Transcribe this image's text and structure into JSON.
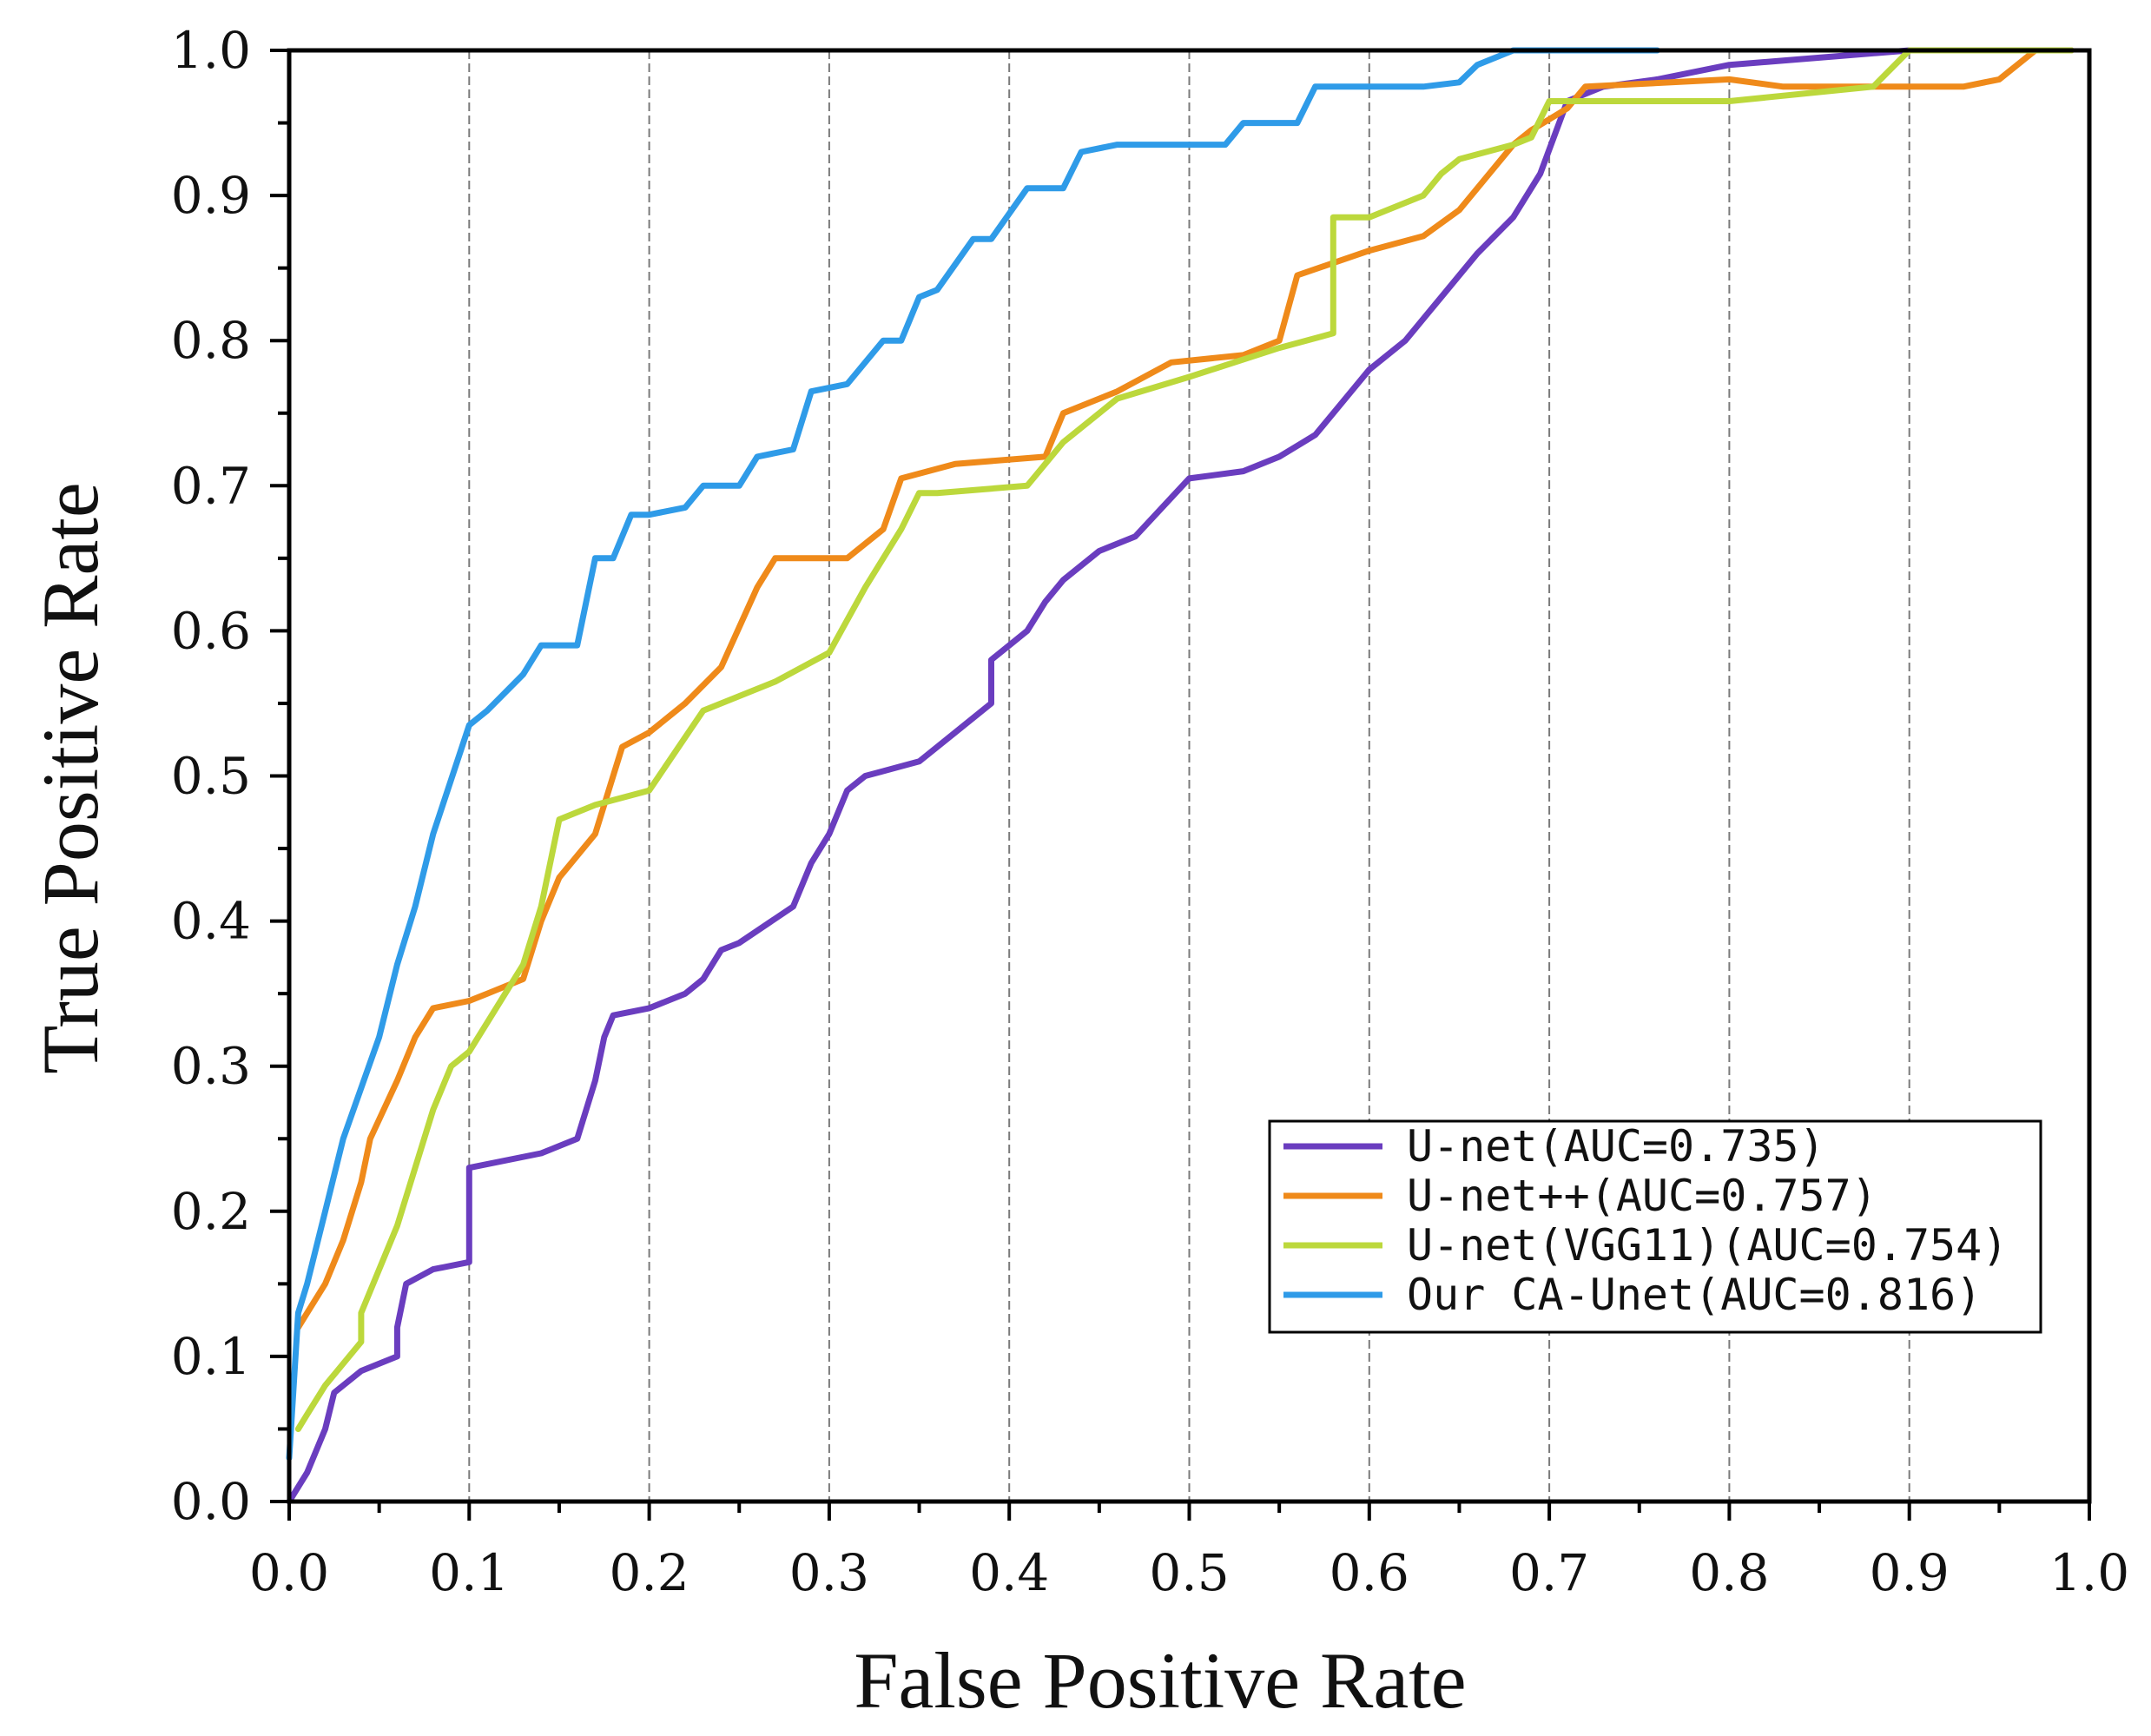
{
  "chart_data": {
    "type": "line",
    "title": "",
    "xlabel": "False Positive Rate",
    "ylabel": "True Positive Rate",
    "xlim": [
      0,
      1
    ],
    "ylim": [
      0,
      1
    ],
    "xticks": [
      "0.0",
      "0.1",
      "0.2",
      "0.3",
      "0.4",
      "0.5",
      "0.6",
      "0.7",
      "0.8",
      "0.9",
      "1.0"
    ],
    "yticks": [
      "0.0",
      "0.1",
      "0.2",
      "0.3",
      "0.4",
      "0.5",
      "0.6",
      "0.7",
      "0.8",
      "0.9",
      "1.0"
    ],
    "grid": "vertical dashed at major x ticks",
    "legend_position": "lower-right",
    "series": [
      {
        "name": "U-net(AUC=0.735)",
        "color": "#6a3dbf",
        "points": [
          [
            0,
            0
          ],
          [
            0.01,
            0.02
          ],
          [
            0.02,
            0.05
          ],
          [
            0.025,
            0.075
          ],
          [
            0.03,
            0.08
          ],
          [
            0.04,
            0.09
          ],
          [
            0.06,
            0.1
          ],
          [
            0.06,
            0.12
          ],
          [
            0.065,
            0.15
          ],
          [
            0.08,
            0.16
          ],
          [
            0.1,
            0.165
          ],
          [
            0.1,
            0.23
          ],
          [
            0.14,
            0.24
          ],
          [
            0.16,
            0.25
          ],
          [
            0.17,
            0.29
          ],
          [
            0.175,
            0.32
          ],
          [
            0.18,
            0.335
          ],
          [
            0.2,
            0.34
          ],
          [
            0.22,
            0.35
          ],
          [
            0.23,
            0.36
          ],
          [
            0.24,
            0.38
          ],
          [
            0.25,
            0.385
          ],
          [
            0.28,
            0.41
          ],
          [
            0.29,
            0.44
          ],
          [
            0.3,
            0.46
          ],
          [
            0.31,
            0.49
          ],
          [
            0.32,
            0.5
          ],
          [
            0.35,
            0.51
          ],
          [
            0.37,
            0.53
          ],
          [
            0.39,
            0.55
          ],
          [
            0.39,
            0.58
          ],
          [
            0.4,
            0.59
          ],
          [
            0.41,
            0.6
          ],
          [
            0.42,
            0.62
          ],
          [
            0.43,
            0.635
          ],
          [
            0.45,
            0.655
          ],
          [
            0.47,
            0.665
          ],
          [
            0.5,
            0.705
          ],
          [
            0.53,
            0.71
          ],
          [
            0.55,
            0.72
          ],
          [
            0.57,
            0.735
          ],
          [
            0.59,
            0.765
          ],
          [
            0.6,
            0.78
          ],
          [
            0.62,
            0.8
          ],
          [
            0.64,
            0.83
          ],
          [
            0.66,
            0.86
          ],
          [
            0.68,
            0.885
          ],
          [
            0.695,
            0.915
          ],
          [
            0.71,
            0.965
          ],
          [
            0.73,
            0.975
          ],
          [
            0.76,
            0.98
          ],
          [
            0.8,
            0.99
          ],
          [
            0.85,
            0.995
          ],
          [
            0.9,
            1.0
          ],
          [
            0.98,
            1.0
          ]
        ]
      },
      {
        "name": "U-net++(AUC=0.757)",
        "color": "#ef8a1a",
        "points": [
          [
            0.005,
            0.12
          ],
          [
            0.01,
            0.13
          ],
          [
            0.02,
            0.15
          ],
          [
            0.03,
            0.18
          ],
          [
            0.04,
            0.22
          ],
          [
            0.045,
            0.25
          ],
          [
            0.06,
            0.29
          ],
          [
            0.07,
            0.32
          ],
          [
            0.08,
            0.34
          ],
          [
            0.1,
            0.345
          ],
          [
            0.11,
            0.35
          ],
          [
            0.13,
            0.36
          ],
          [
            0.14,
            0.4
          ],
          [
            0.15,
            0.43
          ],
          [
            0.17,
            0.46
          ],
          [
            0.18,
            0.5
          ],
          [
            0.185,
            0.52
          ],
          [
            0.2,
            0.53
          ],
          [
            0.22,
            0.55
          ],
          [
            0.24,
            0.575
          ],
          [
            0.26,
            0.63
          ],
          [
            0.27,
            0.65
          ],
          [
            0.31,
            0.65
          ],
          [
            0.33,
            0.67
          ],
          [
            0.34,
            0.705
          ],
          [
            0.37,
            0.715
          ],
          [
            0.42,
            0.72
          ],
          [
            0.43,
            0.75
          ],
          [
            0.46,
            0.765
          ],
          [
            0.49,
            0.785
          ],
          [
            0.53,
            0.79
          ],
          [
            0.55,
            0.8
          ],
          [
            0.56,
            0.845
          ],
          [
            0.6,
            0.862
          ],
          [
            0.63,
            0.872
          ],
          [
            0.65,
            0.89
          ],
          [
            0.67,
            0.92
          ],
          [
            0.68,
            0.935
          ],
          [
            0.69,
            0.945
          ],
          [
            0.71,
            0.96
          ],
          [
            0.72,
            0.975
          ],
          [
            0.8,
            0.98
          ],
          [
            0.83,
            0.975
          ],
          [
            0.93,
            0.975
          ],
          [
            0.95,
            0.98
          ],
          [
            0.97,
            1.0
          ],
          [
            0.99,
            1.0
          ]
        ]
      },
      {
        "name": "U-net(VGG11)(AUC=0.754)",
        "color": "#bcd83c",
        "points": [
          [
            0.005,
            0.05
          ],
          [
            0.01,
            0.06
          ],
          [
            0.02,
            0.08
          ],
          [
            0.04,
            0.11
          ],
          [
            0.04,
            0.13
          ],
          [
            0.06,
            0.19
          ],
          [
            0.08,
            0.27
          ],
          [
            0.09,
            0.3
          ],
          [
            0.1,
            0.31
          ],
          [
            0.11,
            0.33
          ],
          [
            0.13,
            0.37
          ],
          [
            0.14,
            0.41
          ],
          [
            0.15,
            0.47
          ],
          [
            0.17,
            0.48
          ],
          [
            0.2,
            0.49
          ],
          [
            0.23,
            0.545
          ],
          [
            0.27,
            0.565
          ],
          [
            0.3,
            0.585
          ],
          [
            0.32,
            0.63
          ],
          [
            0.34,
            0.67
          ],
          [
            0.35,
            0.695
          ],
          [
            0.36,
            0.695
          ],
          [
            0.41,
            0.7
          ],
          [
            0.43,
            0.73
          ],
          [
            0.46,
            0.76
          ],
          [
            0.5,
            0.775
          ],
          [
            0.55,
            0.795
          ],
          [
            0.58,
            0.805
          ],
          [
            0.58,
            0.885
          ],
          [
            0.6,
            0.885
          ],
          [
            0.63,
            0.9
          ],
          [
            0.64,
            0.915
          ],
          [
            0.65,
            0.925
          ],
          [
            0.68,
            0.935
          ],
          [
            0.69,
            0.94
          ],
          [
            0.7,
            0.965
          ],
          [
            0.75,
            0.965
          ],
          [
            0.8,
            0.965
          ],
          [
            0.88,
            0.975
          ],
          [
            0.9,
            1.0
          ],
          [
            0.97,
            1.0
          ],
          [
            0.99,
            1.0
          ]
        ]
      },
      {
        "name": "Our CA-Unet(AUC=0.816)",
        "color": "#2f9be8",
        "points": [
          [
            0,
            0.03
          ],
          [
            0.005,
            0.13
          ],
          [
            0.01,
            0.15
          ],
          [
            0.02,
            0.2
          ],
          [
            0.03,
            0.25
          ],
          [
            0.05,
            0.32
          ],
          [
            0.06,
            0.37
          ],
          [
            0.07,
            0.41
          ],
          [
            0.08,
            0.46
          ],
          [
            0.1,
            0.535
          ],
          [
            0.11,
            0.545
          ],
          [
            0.13,
            0.57
          ],
          [
            0.14,
            0.59
          ],
          [
            0.16,
            0.59
          ],
          [
            0.17,
            0.65
          ],
          [
            0.18,
            0.65
          ],
          [
            0.19,
            0.68
          ],
          [
            0.2,
            0.68
          ],
          [
            0.22,
            0.685
          ],
          [
            0.23,
            0.7
          ],
          [
            0.25,
            0.7
          ],
          [
            0.26,
            0.72
          ],
          [
            0.28,
            0.725
          ],
          [
            0.29,
            0.765
          ],
          [
            0.31,
            0.77
          ],
          [
            0.33,
            0.8
          ],
          [
            0.34,
            0.8
          ],
          [
            0.35,
            0.83
          ],
          [
            0.36,
            0.835
          ],
          [
            0.38,
            0.87
          ],
          [
            0.39,
            0.87
          ],
          [
            0.41,
            0.905
          ],
          [
            0.43,
            0.905
          ],
          [
            0.44,
            0.93
          ],
          [
            0.46,
            0.935
          ],
          [
            0.52,
            0.935
          ],
          [
            0.53,
            0.95
          ],
          [
            0.56,
            0.95
          ],
          [
            0.57,
            0.975
          ],
          [
            0.6,
            0.975
          ],
          [
            0.63,
            0.975
          ],
          [
            0.65,
            0.978
          ],
          [
            0.66,
            0.99
          ],
          [
            0.68,
            1.0
          ],
          [
            0.72,
            1.0
          ],
          [
            0.76,
            1.0
          ]
        ]
      }
    ]
  }
}
